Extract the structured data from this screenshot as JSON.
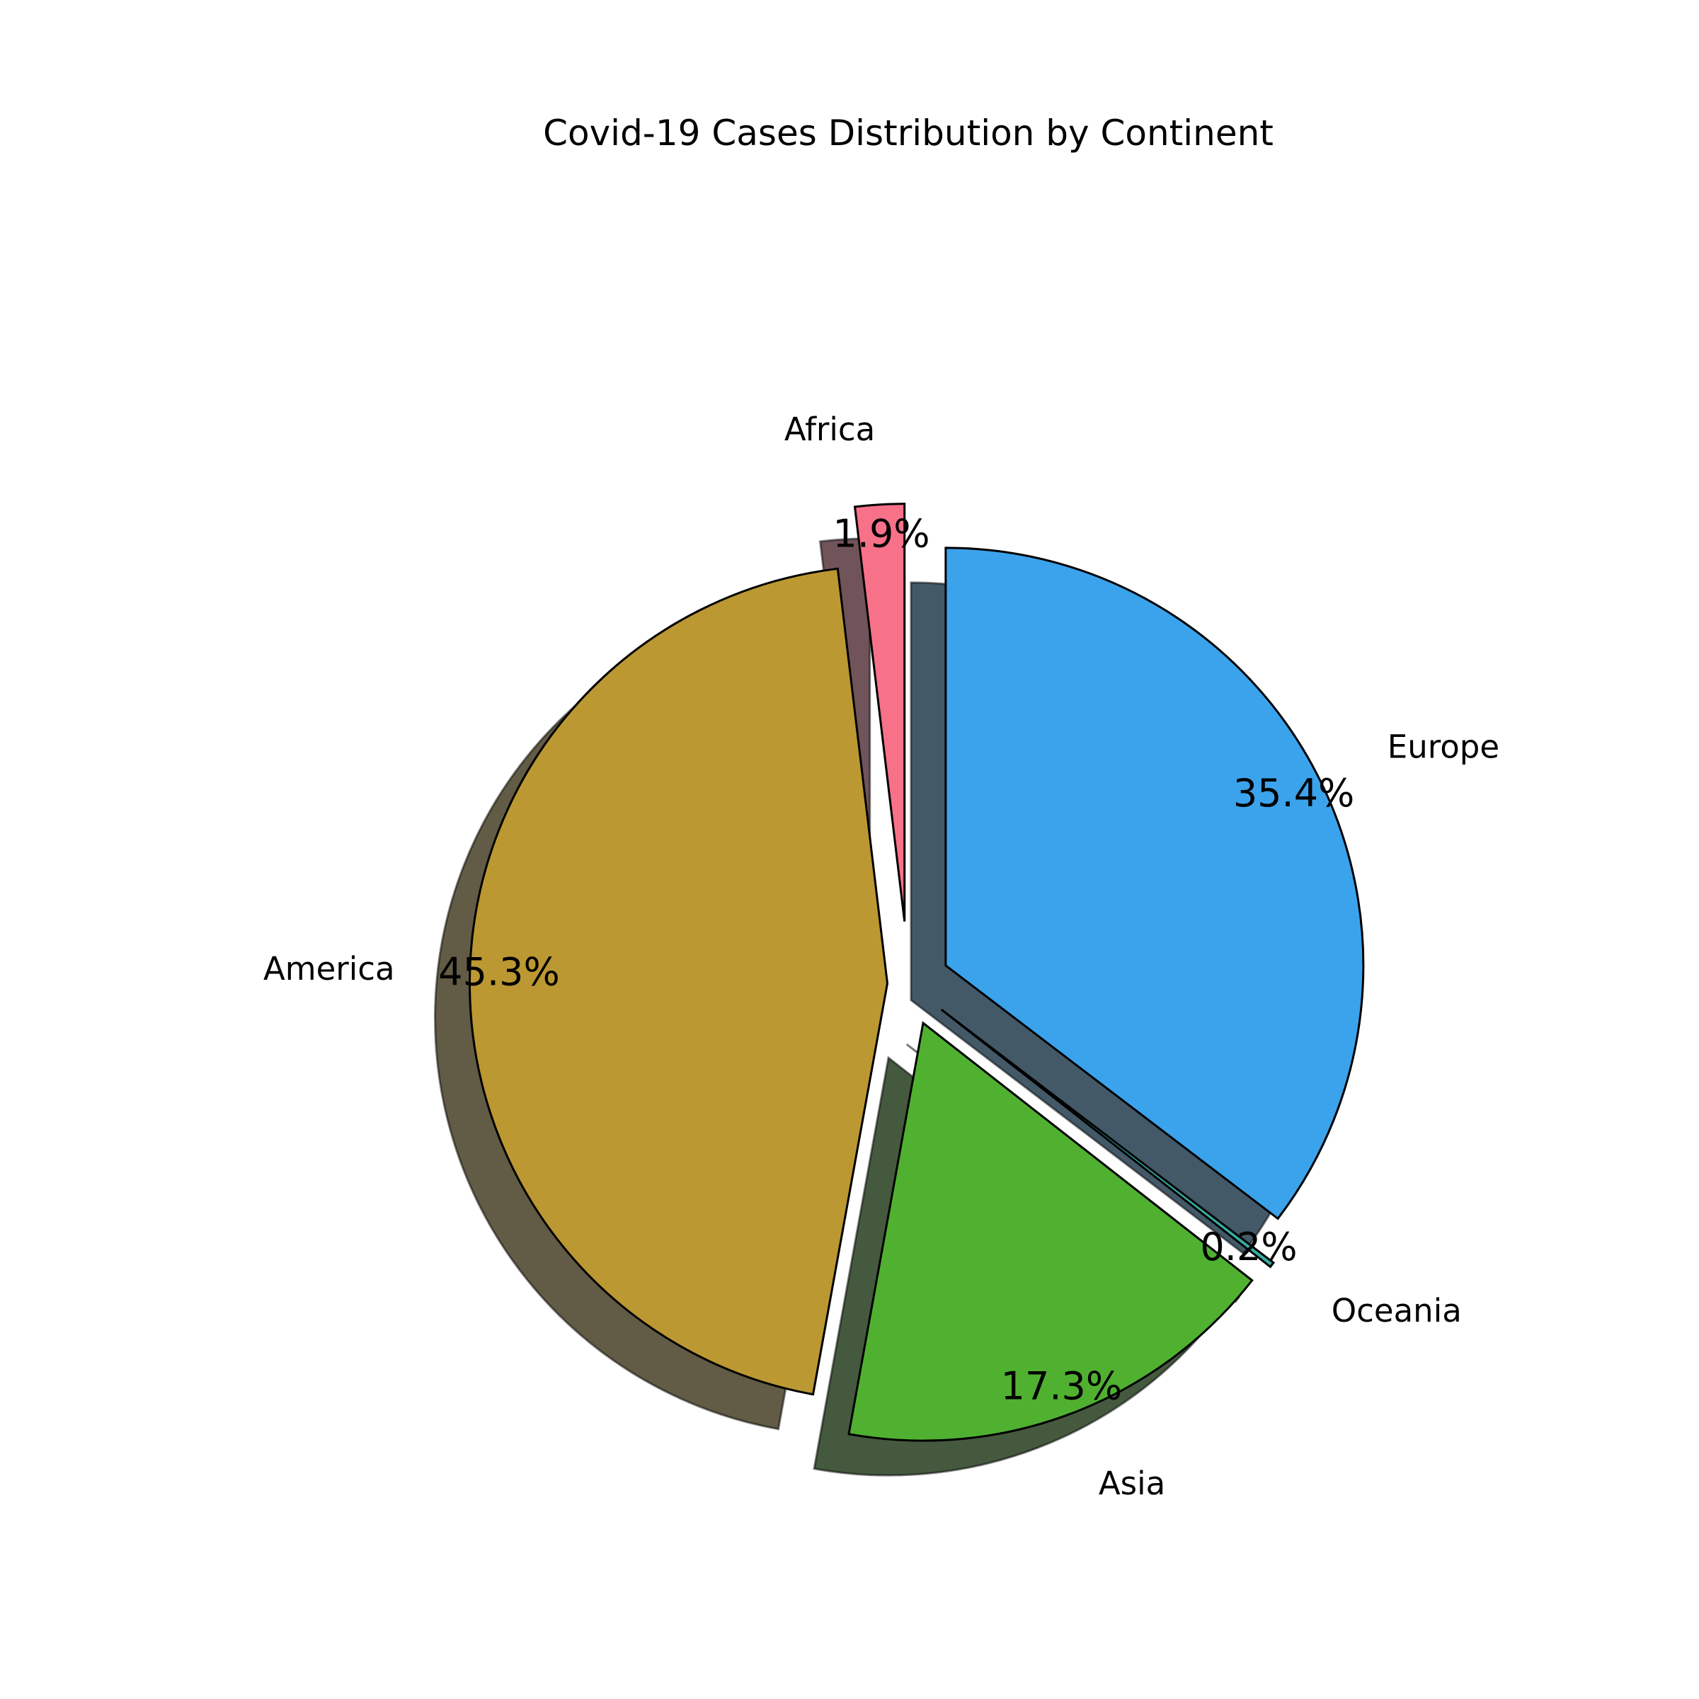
{
  "chart_data": {
    "type": "pie",
    "title": "Covid-19 Cases Distribution by Continent",
    "start_angle_deg": 90,
    "direction": "counterclockwise",
    "shadow": true,
    "slices": [
      {
        "label": "Africa",
        "value": 1.9,
        "pct_label": "1.9%",
        "color": "#f77189",
        "explode": 0.15
      },
      {
        "label": "America",
        "value": 45.3,
        "pct_label": "45.3%",
        "color": "#bb9832",
        "explode": 0.05
      },
      {
        "label": "Asia",
        "value": 17.3,
        "pct_label": "17.3%",
        "color": "#50b131",
        "explode": 0.1
      },
      {
        "label": "Oceania",
        "value": 0.2,
        "pct_label": "0.2%",
        "color": "#36ada4",
        "explode": 0.1
      },
      {
        "label": "Europe",
        "value": 35.4,
        "pct_label": "35.4%",
        "color": "#3ba3ec",
        "explode": 0.1
      }
    ]
  }
}
